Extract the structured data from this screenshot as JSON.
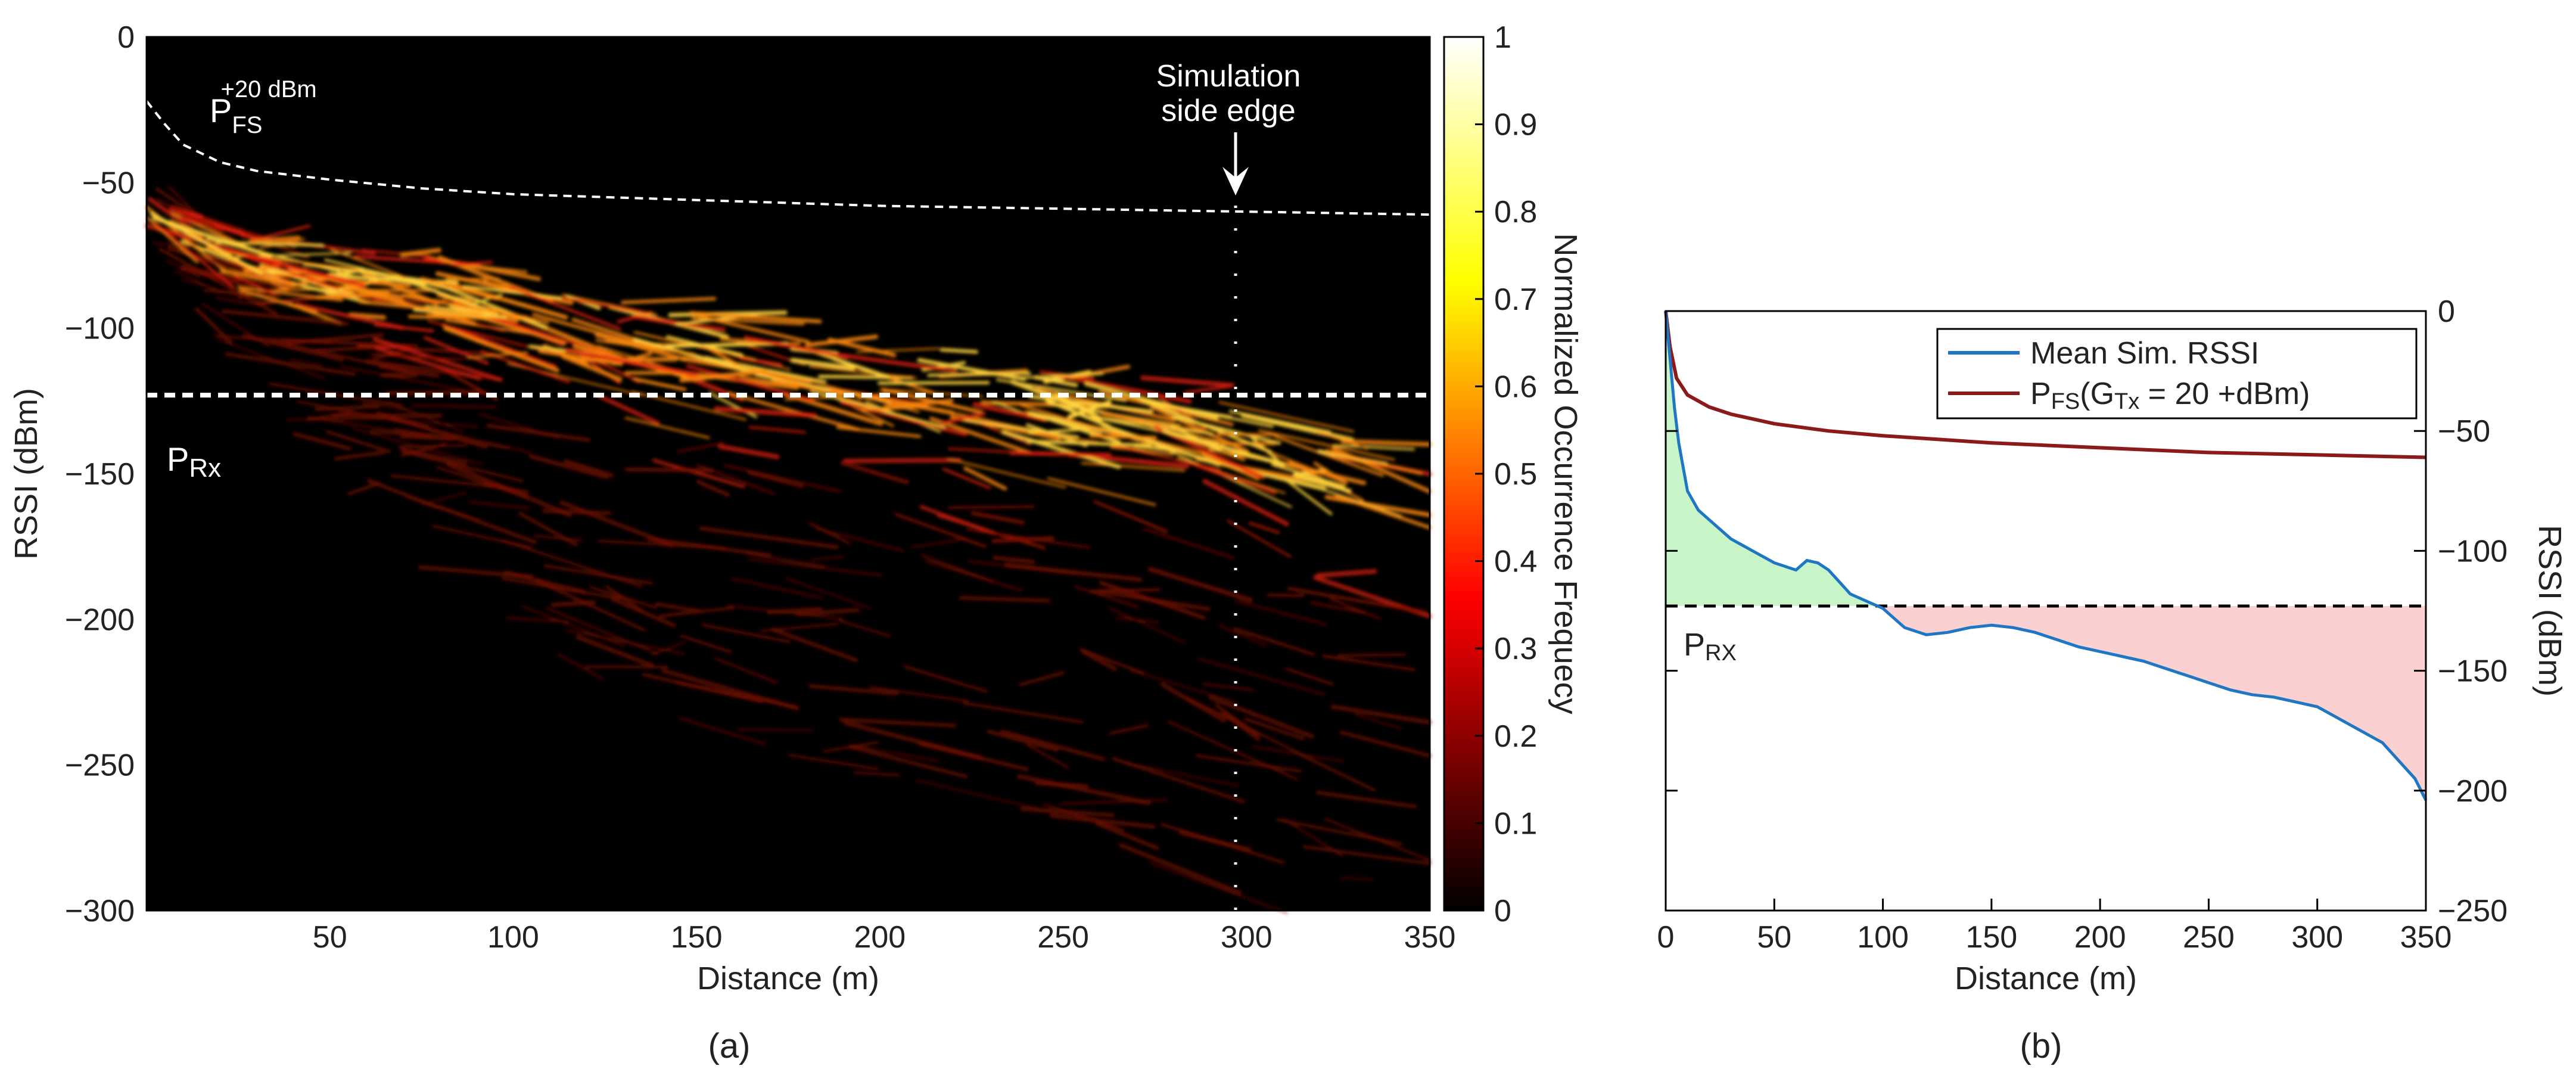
{
  "chart_data": [
    {
      "type": "heatmap",
      "panel_label": "(a)",
      "xlabel": "Distance (m)",
      "ylabel": "RSSI (dBm)",
      "xlim": [
        0,
        350
      ],
      "ylim": [
        -300,
        0
      ],
      "x_ticks": [
        50,
        100,
        150,
        200,
        250,
        300,
        350
      ],
      "y_ticks": [
        0,
        -50,
        -100,
        -150,
        -200,
        -250,
        -300
      ],
      "colorbar": {
        "label": "Normalized Occurrence Frequecy",
        "range": [
          0,
          1
        ],
        "ticks": [
          0,
          0.1,
          0.2,
          0.3,
          0.4,
          0.5,
          0.6,
          0.7,
          0.8,
          0.9,
          1
        ],
        "colormap": "hot"
      },
      "density_band": {
        "x": [
          0,
          25,
          50,
          75,
          100,
          125,
          150,
          175,
          200,
          225,
          250,
          275,
          300,
          325,
          350
        ],
        "upper": [
          -52,
          -68,
          -76,
          -82,
          -88,
          -93,
          -98,
          -103,
          -108,
          -112,
          -118,
          -124,
          -132,
          -138,
          -143
        ],
        "lower": [
          -68,
          -115,
          -150,
          -185,
          -205,
          -225,
          -240,
          -250,
          -260,
          -270,
          -278,
          -285,
          -292,
          -298,
          -300
        ],
        "peak": [
          -60,
          -78,
          -82,
          -86,
          -92,
          -103,
          -108,
          -112,
          -117,
          -122,
          -126,
          -130,
          -140,
          -150,
          -158
        ]
      },
      "curves": [
        {
          "label_base": "P",
          "label_sub": "FS",
          "label_sup": "+20 dBm",
          "style": "dashed",
          "color": "#ffffff",
          "x": [
            0,
            5,
            10,
            20,
            30,
            50,
            75,
            100,
            150,
            200,
            250,
            300,
            350
          ],
          "y": [
            -22,
            -30,
            -37,
            -43,
            -46,
            -49,
            -52,
            -54,
            -56,
            -58,
            -59,
            -60,
            -61
          ]
        },
        {
          "label_base": "P",
          "label_sub": "Rx",
          "style": "dashed",
          "color": "#ffffff",
          "x": [
            0,
            350
          ],
          "y": [
            -123,
            -123
          ]
        }
      ],
      "annotations": [
        {
          "text": [
            "Simulation",
            "side edge"
          ],
          "x": 297,
          "arrow_to_y": -58,
          "dotted_vertical_x": 297
        }
      ]
    },
    {
      "type": "line",
      "panel_label": "(b)",
      "xlabel": "Distance (m)",
      "ylabel": "RSSI (dBm)",
      "xlim": [
        0,
        350
      ],
      "ylim": [
        -250,
        0
      ],
      "x_ticks": [
        0,
        50,
        100,
        150,
        200,
        250,
        300,
        350
      ],
      "y_ticks": [
        0,
        -50,
        -100,
        -150,
        -200,
        -250
      ],
      "legend_position": "top-right",
      "series": [
        {
          "name": "Mean Sim. RSSI",
          "color": "#1f77c4",
          "x": [
            0,
            2,
            4,
            6,
            8,
            10,
            15,
            20,
            30,
            40,
            50,
            60,
            65,
            70,
            75,
            80,
            85,
            90,
            95,
            100,
            105,
            110,
            120,
            130,
            140,
            150,
            160,
            170,
            180,
            190,
            200,
            210,
            220,
            230,
            240,
            250,
            260,
            270,
            280,
            290,
            300,
            310,
            320,
            330,
            340,
            345,
            350
          ],
          "y": [
            0,
            -20,
            -40,
            -55,
            -65,
            -75,
            -83,
            -87,
            -95,
            -100,
            -105,
            -108,
            -104,
            -105,
            -108,
            -113,
            -118,
            -120,
            -122,
            -124,
            -128,
            -132,
            -135,
            -134,
            -132,
            -131,
            -132,
            -134,
            -137,
            -140,
            -142,
            -144,
            -146,
            -149,
            -152,
            -155,
            -158,
            -160,
            -161,
            -163,
            -165,
            -170,
            -175,
            -180,
            -190,
            -195,
            -204
          ]
        },
        {
          "name": "P_FS(G_Tx = 20 +dBm)",
          "legend_base": "P",
          "legend_sub1": "FS",
          "legend_mid": "(G",
          "legend_sub2": "Tx",
          "legend_tail": " =  20 +dBm)",
          "color": "#8b1a1a",
          "x": [
            0,
            2,
            5,
            10,
            20,
            30,
            50,
            75,
            100,
            150,
            200,
            250,
            300,
            350
          ],
          "y": [
            0,
            -15,
            -28,
            -35,
            -40,
            -43,
            -47,
            -50,
            -52,
            -55,
            -57,
            -59,
            -60,
            -61
          ]
        },
        {
          "name": "P_RX",
          "label_base": "P",
          "label_sub": "RX",
          "style": "dashed",
          "color": "#000000",
          "x": [
            0,
            350
          ],
          "y": [
            -123,
            -123
          ]
        }
      ],
      "fills": [
        {
          "meaning": "mean RSSI above P_RX",
          "color": "#c8f5c8"
        },
        {
          "meaning": "mean RSSI below P_RX",
          "color": "#fbd0d0"
        }
      ]
    }
  ]
}
